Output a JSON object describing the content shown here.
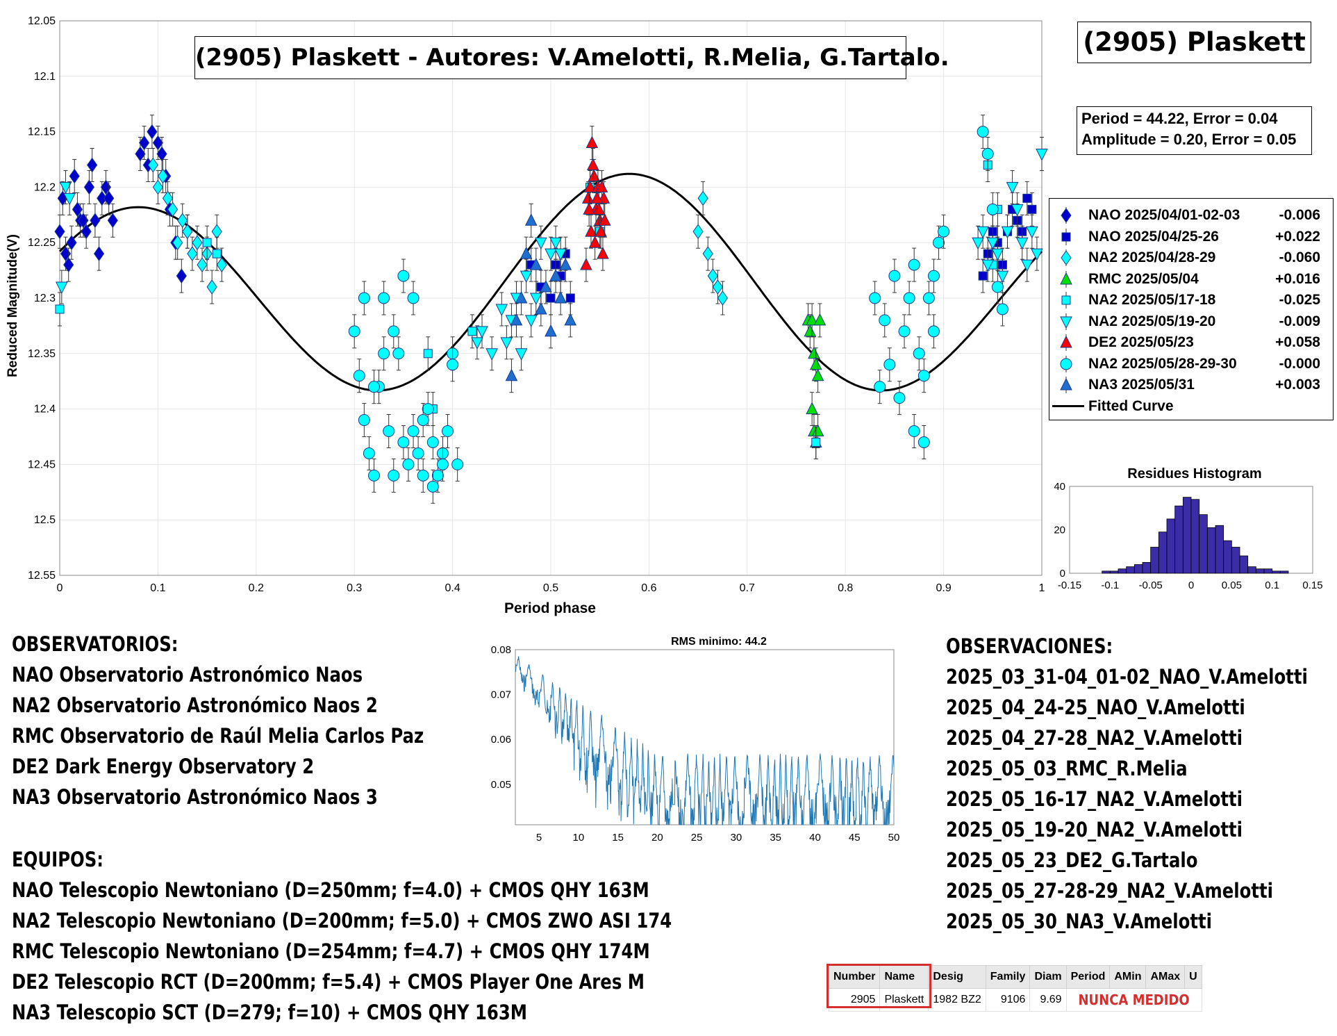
{
  "chart_data": [
    {
      "type": "scatter",
      "title": "(2905) Plaskett - Autores: V.Amelotti, R.Melia, G.Tartalo.",
      "xlabel": "Period phase",
      "ylabel": "Reduced Magnitude(V)",
      "xlim": [
        0,
        1
      ],
      "ylim": [
        12.55,
        12.05
      ],
      "y_reversed": true,
      "grid": true,
      "xticks": [
        "0",
        "0.1",
        "0.2",
        "0.3",
        "0.4",
        "0.5",
        "0.6",
        "0.7",
        "0.8",
        "0.9",
        "1"
      ],
      "yticks": [
        "12.05",
        "12.1",
        "12.15",
        "12.2",
        "12.25",
        "12.3",
        "12.35",
        "12.4",
        "12.45",
        "12.5",
        "12.55"
      ],
      "legend_position": "right",
      "fitted_curve": {
        "name": "Fitted Curve",
        "mean": 12.293,
        "amplitude": 0.1,
        "phase_of_max_magnitude": 0.33,
        "harmonics": 2
      },
      "series": [
        {
          "name": "NAO 2025/04/01-02-03",
          "offset": "-0.006",
          "count": "50",
          "color": "#0000cd",
          "marker": "diamond",
          "x": [
            0.0,
            0.003,
            0.006,
            0.009,
            0.012,
            0.015,
            0.018,
            0.021,
            0.024,
            0.027,
            0.03,
            0.033,
            0.036,
            0.04,
            0.043,
            0.047,
            0.05,
            0.054,
            0.082,
            0.086,
            0.09,
            0.094,
            0.1,
            0.104,
            0.108,
            0.112,
            0.118,
            0.124,
            0.13
          ],
          "y": [
            12.24,
            12.21,
            12.26,
            12.27,
            12.25,
            12.19,
            12.22,
            12.23,
            12.23,
            12.24,
            12.2,
            12.18,
            12.23,
            12.26,
            12.21,
            12.2,
            12.21,
            12.23,
            12.17,
            12.16,
            12.18,
            12.15,
            12.16,
            12.17,
            12.19,
            12.22,
            12.25,
            12.28,
            12.24
          ]
        },
        {
          "name": "NAO 2025/04/25-26",
          "offset": "+0.022",
          "count": "24",
          "color": "#0000cd",
          "marker": "square",
          "x": [
            0.48,
            0.49,
            0.5,
            0.505,
            0.51,
            0.515,
            0.52,
            0.94,
            0.945,
            0.95,
            0.955,
            0.96,
            0.965,
            0.97,
            0.975,
            0.98,
            0.985,
            0.99
          ],
          "y": [
            12.27,
            12.29,
            12.3,
            12.27,
            12.28,
            12.26,
            12.3,
            12.28,
            12.26,
            12.24,
            12.25,
            12.27,
            12.24,
            12.22,
            12.23,
            12.24,
            12.21,
            12.22
          ]
        },
        {
          "name": "NA2 2025/04/28-29",
          "offset": "-0.060",
          "count": "49",
          "color": "#00ffff",
          "marker": "diamond",
          "x": [
            0.095,
            0.1,
            0.105,
            0.11,
            0.115,
            0.12,
            0.125,
            0.13,
            0.135,
            0.14,
            0.145,
            0.15,
            0.155,
            0.16,
            0.165,
            0.65,
            0.655,
            0.66,
            0.665,
            0.67,
            0.675
          ],
          "y": [
            12.18,
            12.2,
            12.19,
            12.21,
            12.22,
            12.25,
            12.23,
            12.24,
            12.26,
            12.25,
            12.27,
            12.26,
            12.29,
            12.24,
            12.27,
            12.24,
            12.21,
            12.26,
            12.28,
            12.29,
            12.3
          ]
        },
        {
          "name": "RMC 2025/05/04",
          "offset": "+0.016",
          "count": "11",
          "color": "#00e000",
          "marker": "triangle-up",
          "x": [
            0.762,
            0.764,
            0.766,
            0.768,
            0.77,
            0.772,
            0.774,
            0.766,
            0.768,
            0.77,
            0.772
          ],
          "y": [
            12.32,
            12.33,
            12.32,
            12.35,
            12.36,
            12.37,
            12.32,
            12.4,
            12.42,
            12.43,
            12.42
          ]
        },
        {
          "name": "NA2 2025/05/17-18",
          "offset": "-0.025",
          "count": "12",
          "color": "#00ffff",
          "marker": "square",
          "x": [
            0.0,
            0.15,
            0.16,
            0.375,
            0.38,
            0.42,
            0.945,
            0.95,
            0.955,
            0.77,
            0.54,
            0.55
          ],
          "y": [
            12.31,
            12.25,
            12.26,
            12.35,
            12.4,
            12.33,
            12.18,
            12.27,
            12.22,
            12.43,
            12.2,
            12.24
          ]
        },
        {
          "name": "NA2 2025/05/19-20",
          "offset": "-0.009",
          "count": "58",
          "color": "#00ffff",
          "marker": "triangle-down",
          "x": [
            0.002,
            0.006,
            0.01,
            0.425,
            0.43,
            0.44,
            0.45,
            0.455,
            0.46,
            0.465,
            0.47,
            0.475,
            0.48,
            0.485,
            0.49,
            0.5,
            0.505,
            0.51,
            0.935,
            0.94,
            0.945,
            0.95,
            0.955,
            0.96,
            0.965,
            0.97,
            0.975,
            0.98,
            0.985,
            0.99,
            0.995,
            1.0
          ],
          "y": [
            12.29,
            12.2,
            12.21,
            12.34,
            12.33,
            12.35,
            12.31,
            12.34,
            12.32,
            12.3,
            12.35,
            12.28,
            12.32,
            12.3,
            12.25,
            12.26,
            12.25,
            12.26,
            12.25,
            12.24,
            12.27,
            12.25,
            12.26,
            12.28,
            12.24,
            12.2,
            12.22,
            12.25,
            12.27,
            12.24,
            12.26,
            12.17
          ]
        },
        {
          "name": "DE2 2025/05/23",
          "offset": "+0.058",
          "count": "19",
          "color": "#ff0000",
          "marker": "triangle-up",
          "x": [
            0.536,
            0.538,
            0.54,
            0.542,
            0.544,
            0.546,
            0.548,
            0.55,
            0.552,
            0.554,
            0.541,
            0.545,
            0.549,
            0.553,
            0.539,
            0.543,
            0.547,
            0.551,
            0.555
          ],
          "y": [
            12.27,
            12.21,
            12.2,
            12.16,
            12.19,
            12.22,
            12.2,
            12.23,
            12.2,
            12.21,
            12.24,
            12.25,
            12.22,
            12.26,
            12.22,
            12.18,
            12.21,
            12.24,
            12.23
          ]
        },
        {
          "name": "NA2 2025/05/28-29-30",
          "offset": "-0.000",
          "count": "99",
          "color": "#00ffff",
          "marker": "circle",
          "x": [
            0.3,
            0.305,
            0.31,
            0.315,
            0.32,
            0.325,
            0.33,
            0.335,
            0.34,
            0.345,
            0.35,
            0.355,
            0.36,
            0.365,
            0.37,
            0.375,
            0.38,
            0.385,
            0.39,
            0.395,
            0.4,
            0.405,
            0.31,
            0.32,
            0.33,
            0.34,
            0.35,
            0.36,
            0.37,
            0.38,
            0.39,
            0.4,
            0.83,
            0.835,
            0.84,
            0.845,
            0.85,
            0.855,
            0.86,
            0.865,
            0.87,
            0.875,
            0.88,
            0.885,
            0.89,
            0.895,
            0.9,
            0.87,
            0.88,
            0.89,
            0.94,
            0.945,
            0.95,
            0.955,
            0.96
          ],
          "y": [
            12.33,
            12.37,
            12.41,
            12.44,
            12.46,
            12.38,
            12.3,
            12.42,
            12.46,
            12.35,
            12.43,
            12.45,
            12.42,
            12.44,
            12.46,
            12.4,
            12.43,
            12.46,
            12.44,
            12.42,
            12.35,
            12.45,
            12.3,
            12.38,
            12.35,
            12.33,
            12.28,
            12.3,
            12.41,
            12.47,
            12.45,
            12.36,
            12.3,
            12.38,
            12.32,
            12.36,
            12.28,
            12.39,
            12.33,
            12.3,
            12.27,
            12.35,
            12.37,
            12.3,
            12.28,
            12.25,
            12.24,
            12.42,
            12.43,
            12.33,
            12.15,
            12.17,
            12.22,
            12.29,
            12.31
          ]
        },
        {
          "name": "NA3 2025/05/31",
          "offset": "+0.003",
          "count": "13",
          "color": "#1f6fd0",
          "marker": "triangle-up",
          "x": [
            0.46,
            0.465,
            0.47,
            0.475,
            0.48,
            0.485,
            0.49,
            0.495,
            0.5,
            0.505,
            0.51,
            0.515,
            0.52
          ],
          "y": [
            12.37,
            12.32,
            12.3,
            12.26,
            12.23,
            12.27,
            12.31,
            12.29,
            12.33,
            12.28,
            12.3,
            12.27,
            12.32
          ]
        }
      ]
    },
    {
      "type": "bar",
      "title": "Residues Histogram",
      "xlim": [
        -0.15,
        0.15
      ],
      "ylim": [
        0,
        40
      ],
      "xticks": [
        "-0.15",
        "-0.1",
        "-0.05",
        "0",
        "0.05",
        "0.1",
        "0.15"
      ],
      "yticks": [
        "0",
        "20",
        "40"
      ],
      "color": "#3b2ca8",
      "bin_width": 0.01,
      "bin_centers": [
        -0.105,
        -0.095,
        -0.085,
        -0.075,
        -0.065,
        -0.055,
        -0.045,
        -0.035,
        -0.025,
        -0.015,
        -0.005,
        0.005,
        0.015,
        0.025,
        0.035,
        0.045,
        0.055,
        0.065,
        0.075,
        0.085,
        0.095,
        0.105,
        0.115
      ],
      "counts": [
        1,
        1,
        2,
        3,
        4,
        5,
        12,
        19,
        25,
        31,
        35,
        34,
        27,
        21,
        22,
        15,
        12,
        8,
        3,
        2,
        2,
        1,
        1
      ]
    },
    {
      "type": "line",
      "title": "RMS minimo: 44.2",
      "xlim": [
        2,
        50
      ],
      "ylim": [
        0.041,
        0.08
      ],
      "xticks": [
        "5",
        "10",
        "15",
        "20",
        "25",
        "30",
        "35",
        "40",
        "45",
        "50"
      ],
      "yticks": [
        "0.05",
        "0.06",
        "0.07",
        "0.08"
      ],
      "color": "#1f77b4",
      "x_start": 2,
      "x_step": 0.05,
      "minimum": {
        "x": 44.22,
        "y": 0.041
      }
    }
  ],
  "title_box": "(2905) Plaskett - Autores: V.Amelotti, R.Melia, G.Tartalo.",
  "name_box": "(2905) Plaskett",
  "stats": {
    "line1": "Period =  44.22, Error = 0.04",
    "line2": "Amplitude = 0.20, Error = 0.05"
  },
  "observatorios": {
    "heading": "OBSERVATORIOS:",
    "items": [
      "NAO Observatorio Astronómico Naos",
      "NA2 Observatorio Astronómico Naos 2",
      "RMC Observatorio de Raúl Melia Carlos Paz",
      "DE2 Dark Energy Observatory 2",
      "NA3 Observatorio Astronómico Naos 3"
    ]
  },
  "equipos": {
    "heading": "EQUIPOS:",
    "items": [
      "NAO Telescopio Newtoniano (D=250mm; f=4.0) + CMOS QHY 163M",
      "NA2 Telescopio Newtoniano (D=200mm; f=5.0) + CMOS ZWO ASI 174",
      "RMC Telescopio Newtoniano (D=254mm; f=4.7) + CMOS QHY 174M",
      "DE2 Telescopio RCT (D=200mm; f=5.4) + CMOS Player One Ares M",
      "NA3 Telescopio SCT (D=279; f=10) + CMOS QHY 163M"
    ]
  },
  "observaciones": {
    "heading": "OBSERVACIONES:",
    "items": [
      "2025_03_31-04_01-02_NAO_V.Amelotti",
      "2025_04_24-25_NAO_V.Amelotti",
      "2025_04_27-28_NA2_V.Amelotti",
      "2025_05_03_RMC_R.Melia",
      "2025_05_16-17_NA2_V.Amelotti",
      "2025_05_19-20_NA2_V.Amelotti",
      "2025_05_23_DE2_G.Tartalo",
      "2025_05_27-28-29_NA2_V.Amelotti",
      "2025_05_30_NA3_V.Amelotti"
    ]
  },
  "asteroid_table": {
    "headers": [
      "Number",
      "Name",
      "Desig",
      "Family",
      "Diam",
      "Period",
      "AMin",
      "AMax",
      "U"
    ],
    "row": {
      "number": "2905",
      "name": "Plaskett",
      "desig": "1982 BZ2",
      "family": "9106",
      "diam": "9.69",
      "status": "NUNCA MEDIDO"
    },
    "highlight_color": "#d32f2f"
  }
}
